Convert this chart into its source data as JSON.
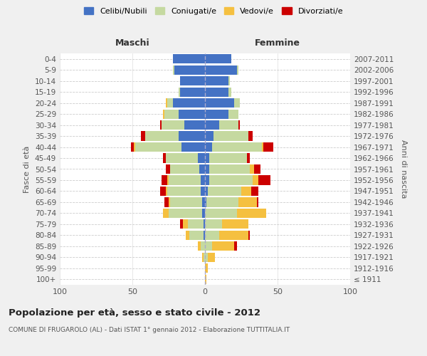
{
  "age_groups": [
    "100+",
    "95-99",
    "90-94",
    "85-89",
    "80-84",
    "75-79",
    "70-74",
    "65-69",
    "60-64",
    "55-59",
    "50-54",
    "45-49",
    "40-44",
    "35-39",
    "30-34",
    "25-29",
    "20-24",
    "15-19",
    "10-14",
    "5-9",
    "0-4"
  ],
  "birth_years": [
    "≤ 1911",
    "1912-1916",
    "1917-1921",
    "1922-1926",
    "1927-1931",
    "1932-1936",
    "1937-1941",
    "1942-1946",
    "1947-1951",
    "1952-1956",
    "1957-1961",
    "1962-1966",
    "1967-1971",
    "1972-1976",
    "1977-1981",
    "1982-1986",
    "1987-1991",
    "1992-1996",
    "1997-2001",
    "2002-2006",
    "2007-2011"
  ],
  "colors": {
    "celibi": "#4472C4",
    "coniugati": "#C5D9A0",
    "vedovi": "#F5C040",
    "divorziati": "#CC0000"
  },
  "legend_labels": [
    "Celibi/Nubili",
    "Coniugati/e",
    "Vedovi/e",
    "Divorziati/e"
  ],
  "maschi": {
    "celibi": [
      0,
      0,
      0,
      0,
      1,
      1,
      2,
      2,
      3,
      3,
      4,
      5,
      16,
      18,
      14,
      18,
      22,
      17,
      17,
      21,
      22
    ],
    "coniugati": [
      0,
      0,
      1,
      3,
      10,
      11,
      23,
      22,
      23,
      22,
      20,
      22,
      32,
      23,
      16,
      10,
      4,
      1,
      0,
      1,
      0
    ],
    "vedovi": [
      0,
      0,
      1,
      2,
      2,
      3,
      4,
      1,
      1,
      1,
      0,
      0,
      1,
      0,
      0,
      1,
      1,
      0,
      0,
      0,
      0
    ],
    "divorziati": [
      0,
      0,
      0,
      0,
      0,
      2,
      0,
      3,
      4,
      4,
      3,
      2,
      2,
      3,
      1,
      0,
      0,
      0,
      0,
      0,
      0
    ]
  },
  "femmine": {
    "nubili": [
      0,
      0,
      0,
      0,
      0,
      0,
      0,
      1,
      2,
      3,
      3,
      3,
      5,
      6,
      10,
      16,
      20,
      16,
      16,
      22,
      18
    ],
    "coniugati": [
      0,
      0,
      2,
      5,
      10,
      12,
      22,
      22,
      23,
      30,
      28,
      26,
      34,
      24,
      13,
      7,
      4,
      2,
      1,
      1,
      0
    ],
    "vedovi": [
      1,
      2,
      5,
      15,
      20,
      18,
      20,
      13,
      7,
      4,
      3,
      0,
      1,
      0,
      0,
      0,
      0,
      0,
      0,
      0,
      0
    ],
    "divorziati": [
      0,
      0,
      0,
      2,
      1,
      0,
      0,
      1,
      5,
      8,
      4,
      2,
      7,
      3,
      1,
      0,
      0,
      0,
      0,
      0,
      0
    ]
  },
  "xlim": 100,
  "title": "Popolazione per età, sesso e stato civile - 2012",
  "subtitle": "COMUNE DI FRUGAROLO (AL) - Dati ISTAT 1° gennaio 2012 - Elaborazione TUTTITALIA.IT",
  "ylabel_left": "Fasce di età",
  "ylabel_right": "Anni di nascita",
  "xlabel_left": "Maschi",
  "xlabel_right": "Femmine",
  "bg_color": "#f0f0f0",
  "plot_bg_color": "#ffffff"
}
